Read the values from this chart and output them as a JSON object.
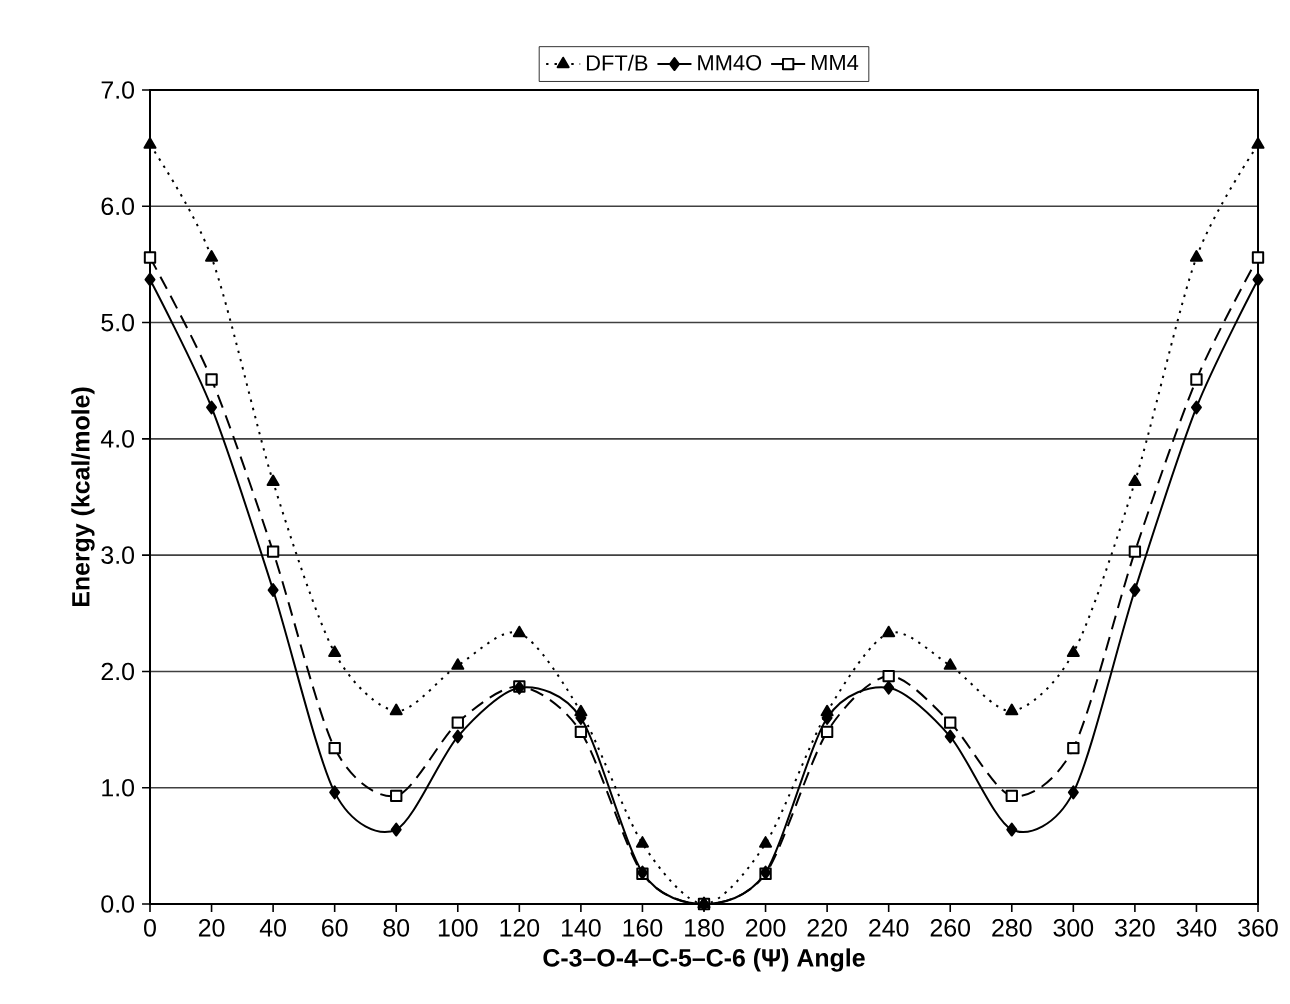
{
  "chart_data": {
    "type": "line",
    "xlabel": "C-3–O-4–C-5–C-6 (Ψ) Angle",
    "ylabel": "Energy (kcal/mole)",
    "x": [
      0,
      20,
      40,
      60,
      80,
      100,
      120,
      140,
      160,
      180,
      200,
      220,
      240,
      260,
      280,
      300,
      320,
      340,
      360
    ],
    "series": [
      {
        "name": "DFT/B",
        "color": "#000000",
        "marker": "triangle",
        "line_style": "dotted",
        "values": [
          6.53,
          5.56,
          3.63,
          2.16,
          1.66,
          2.05,
          2.33,
          1.65,
          0.52,
          0.0,
          0.52,
          1.65,
          2.33,
          2.05,
          1.66,
          2.16,
          3.63,
          5.56,
          6.53
        ]
      },
      {
        "name": "MM4O",
        "color": "#000000",
        "marker": "diamond",
        "line_style": "solid",
        "values": [
          5.37,
          4.27,
          2.7,
          0.96,
          0.64,
          1.44,
          1.86,
          1.6,
          0.27,
          0.0,
          0.27,
          1.6,
          1.86,
          1.44,
          0.64,
          0.96,
          2.7,
          4.27,
          5.37
        ]
      },
      {
        "name": "MM4",
        "color": "#000000",
        "marker": "square",
        "line_style": "dashed",
        "values": [
          5.56,
          4.51,
          3.03,
          1.34,
          0.93,
          1.56,
          1.87,
          1.48,
          0.26,
          0.0,
          0.26,
          1.48,
          1.96,
          1.56,
          0.93,
          1.34,
          3.03,
          4.51,
          5.56
        ]
      }
    ],
    "xlim": [
      0,
      360
    ],
    "xticks": [
      0,
      20,
      40,
      60,
      80,
      100,
      120,
      140,
      160,
      180,
      200,
      220,
      240,
      260,
      280,
      300,
      320,
      340,
      360
    ],
    "ylim": [
      0,
      7
    ],
    "yticks": [
      {
        "value": 0,
        "label": "0.0"
      },
      {
        "value": 1,
        "label": "1.0"
      },
      {
        "value": 2,
        "label": "2.0"
      },
      {
        "value": 3,
        "label": "3.0"
      },
      {
        "value": 4,
        "label": "4.0"
      },
      {
        "value": 5,
        "label": "5.0"
      },
      {
        "value": 6,
        "label": "6.0"
      },
      {
        "value": 7,
        "label": "7.0"
      }
    ],
    "grid": "y",
    "legend": "top"
  }
}
